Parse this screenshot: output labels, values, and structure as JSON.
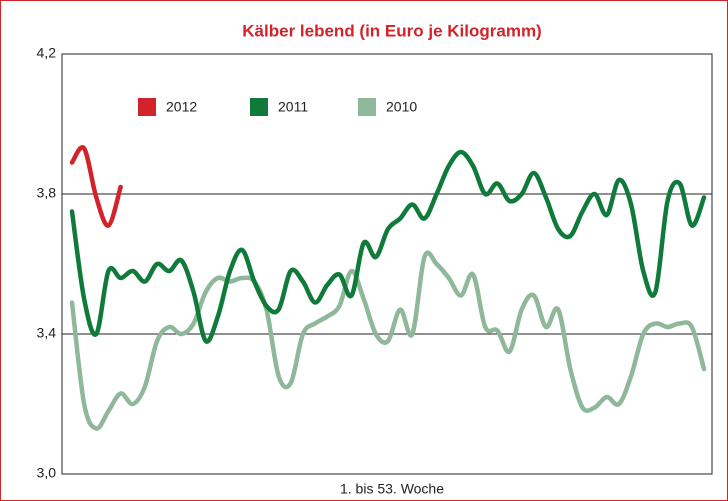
{
  "chart_data": {
    "type": "line",
    "title": "Kälber lebend (in Euro je Kilogramm)",
    "xlabel": "1. bis 53. Woche",
    "x": [
      1,
      2,
      3,
      4,
      5,
      6,
      7,
      8,
      9,
      10,
      11,
      12,
      13,
      14,
      15,
      16,
      17,
      18,
      19,
      20,
      21,
      22,
      23,
      24,
      25,
      26,
      27,
      28,
      29,
      30,
      31,
      32,
      33,
      34,
      35,
      36,
      37,
      38,
      39,
      40,
      41,
      42,
      43,
      44,
      45,
      46,
      47,
      48,
      49,
      50,
      51,
      52,
      53
    ],
    "xlim": [
      1,
      53
    ],
    "ylim": [
      3.0,
      4.2
    ],
    "yticks": [
      {
        "value": 4.2,
        "label": "4,2"
      },
      {
        "value": 3.8,
        "label": "3,8"
      },
      {
        "value": 3.4,
        "label": "3,4"
      },
      {
        "value": 3.0,
        "label": "3,0"
      }
    ],
    "grid": true,
    "legend": "top-left",
    "series": [
      {
        "name": "2012",
        "color": "#d2232a",
        "values": [
          3.89,
          3.93,
          3.79,
          3.71,
          3.82,
          null,
          null,
          null,
          null,
          null,
          null,
          null,
          null,
          null,
          null,
          null,
          null,
          null,
          null,
          null,
          null,
          null,
          null,
          null,
          null,
          null,
          null,
          null,
          null,
          null,
          null,
          null,
          null,
          null,
          null,
          null,
          null,
          null,
          null,
          null,
          null,
          null,
          null,
          null,
          null,
          null,
          null,
          null,
          null,
          null,
          null,
          null,
          null
        ]
      },
      {
        "name": "2011",
        "color": "#0f7a3a",
        "values": [
          3.75,
          3.5,
          3.4,
          3.58,
          3.56,
          3.58,
          3.55,
          3.6,
          3.58,
          3.61,
          3.52,
          3.38,
          3.45,
          3.58,
          3.64,
          3.55,
          3.48,
          3.47,
          3.58,
          3.55,
          3.49,
          3.54,
          3.57,
          3.51,
          3.66,
          3.62,
          3.7,
          3.73,
          3.77,
          3.73,
          3.8,
          3.88,
          3.92,
          3.88,
          3.8,
          3.83,
          3.78,
          3.8,
          3.86,
          3.79,
          3.7,
          3.68,
          3.75,
          3.8,
          3.74,
          3.84,
          3.77,
          3.58,
          3.52,
          3.78,
          3.83,
          3.71,
          3.79
        ]
      },
      {
        "name": "2010",
        "color": "#8fb89a",
        "values": [
          3.49,
          3.2,
          3.13,
          3.18,
          3.23,
          3.2,
          3.25,
          3.38,
          3.42,
          3.4,
          3.43,
          3.52,
          3.56,
          3.55,
          3.56,
          3.55,
          3.47,
          3.28,
          3.26,
          3.4,
          3.43,
          3.45,
          3.48,
          3.58,
          3.5,
          3.4,
          3.38,
          3.47,
          3.4,
          3.62,
          3.6,
          3.56,
          3.51,
          3.57,
          3.42,
          3.41,
          3.35,
          3.47,
          3.51,
          3.42,
          3.47,
          3.3,
          3.19,
          3.19,
          3.22,
          3.2,
          3.28,
          3.4,
          3.43,
          3.42,
          3.43,
          3.42,
          3.3
        ]
      }
    ]
  }
}
